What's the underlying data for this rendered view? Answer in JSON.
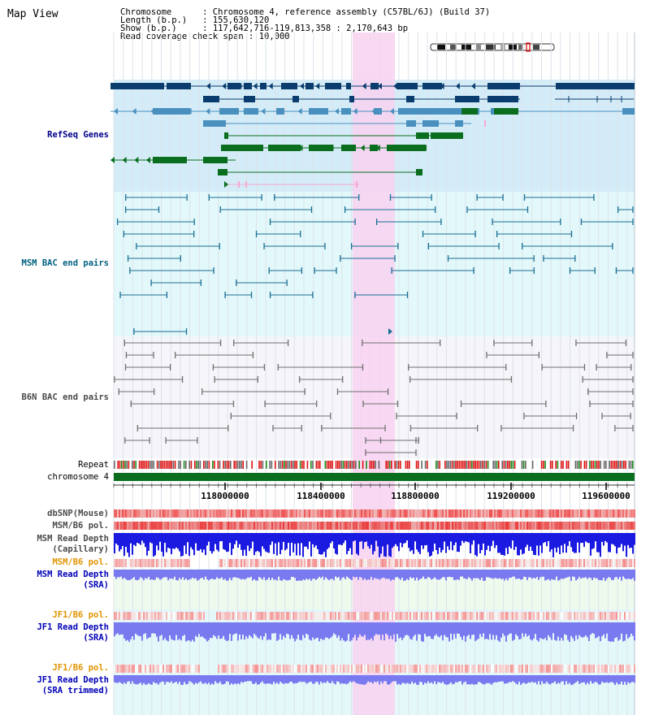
{
  "view": {
    "title": "Map View"
  },
  "info": {
    "chromosome_key": "Chromosome",
    "chromosome_value": "Chromosome 4, reference assembly (C57BL/6J) (Build 37)",
    "length_key": "Length (b.p.)",
    "length_value": "155,630,120",
    "show_key": "Show (b.p.)",
    "show_value": "117,642,716-119,813,358 : 2,170,643 bp",
    "coverage_key": "Read coverage check span",
    "coverage_value": "10,000"
  },
  "tracks": {
    "refseq": "RefSeq Genes",
    "msm_bac": "MSM BAC end pairs",
    "b6n_bac": "B6N BAC end pairs",
    "repeat": "Repeat",
    "chromosome": "chromosome 4",
    "dbsnp": "dbSNP(Mouse)",
    "msm_pol": "MSM/B6 pol.",
    "msm_depth_cap_1": "MSM Read Depth",
    "msm_depth_cap_2": "(Capillary)",
    "msm_pol2": "MSM/B6 pol.",
    "msm_depth_sra_1": "MSM Read Depth",
    "msm_depth_sra_2": "(SRA)",
    "jf1_pol": "JF1/B6 pol.",
    "jf1_depth_sra_1": "JF1 Read Depth",
    "jf1_depth_sra_2": "(SRA)",
    "jf1_pol2": "JF1/B6 pol.",
    "jf1_depth_trim_1": "JF1 Read Depth",
    "jf1_depth_trim_2": "(SRA trimmed)"
  },
  "axis": {
    "ticks": [
      "118000000",
      "118400000",
      "118800000",
      "119200000",
      "119600000"
    ]
  },
  "colors": {
    "refseq_bg": "#d4ecf8",
    "msm_bg": "#e2f8fa",
    "b6n_bg": "#f5f5fa",
    "highlight": "#f8d2f0",
    "label_blue": "#00008b",
    "label_teal": "#005f7f",
    "label_gray": "#4a4a4a",
    "label_orange": "#e09400",
    "label_darkblue": "#0000b8",
    "navy_gene": "#0a3d6e",
    "mid_gene": "#4a90bf",
    "green_gene": "#0a6e1e",
    "chrom_bar": "#0a6e1e",
    "depth_blue": "#1a1ae0",
    "depth_light": "#7a7af0"
  }
}
